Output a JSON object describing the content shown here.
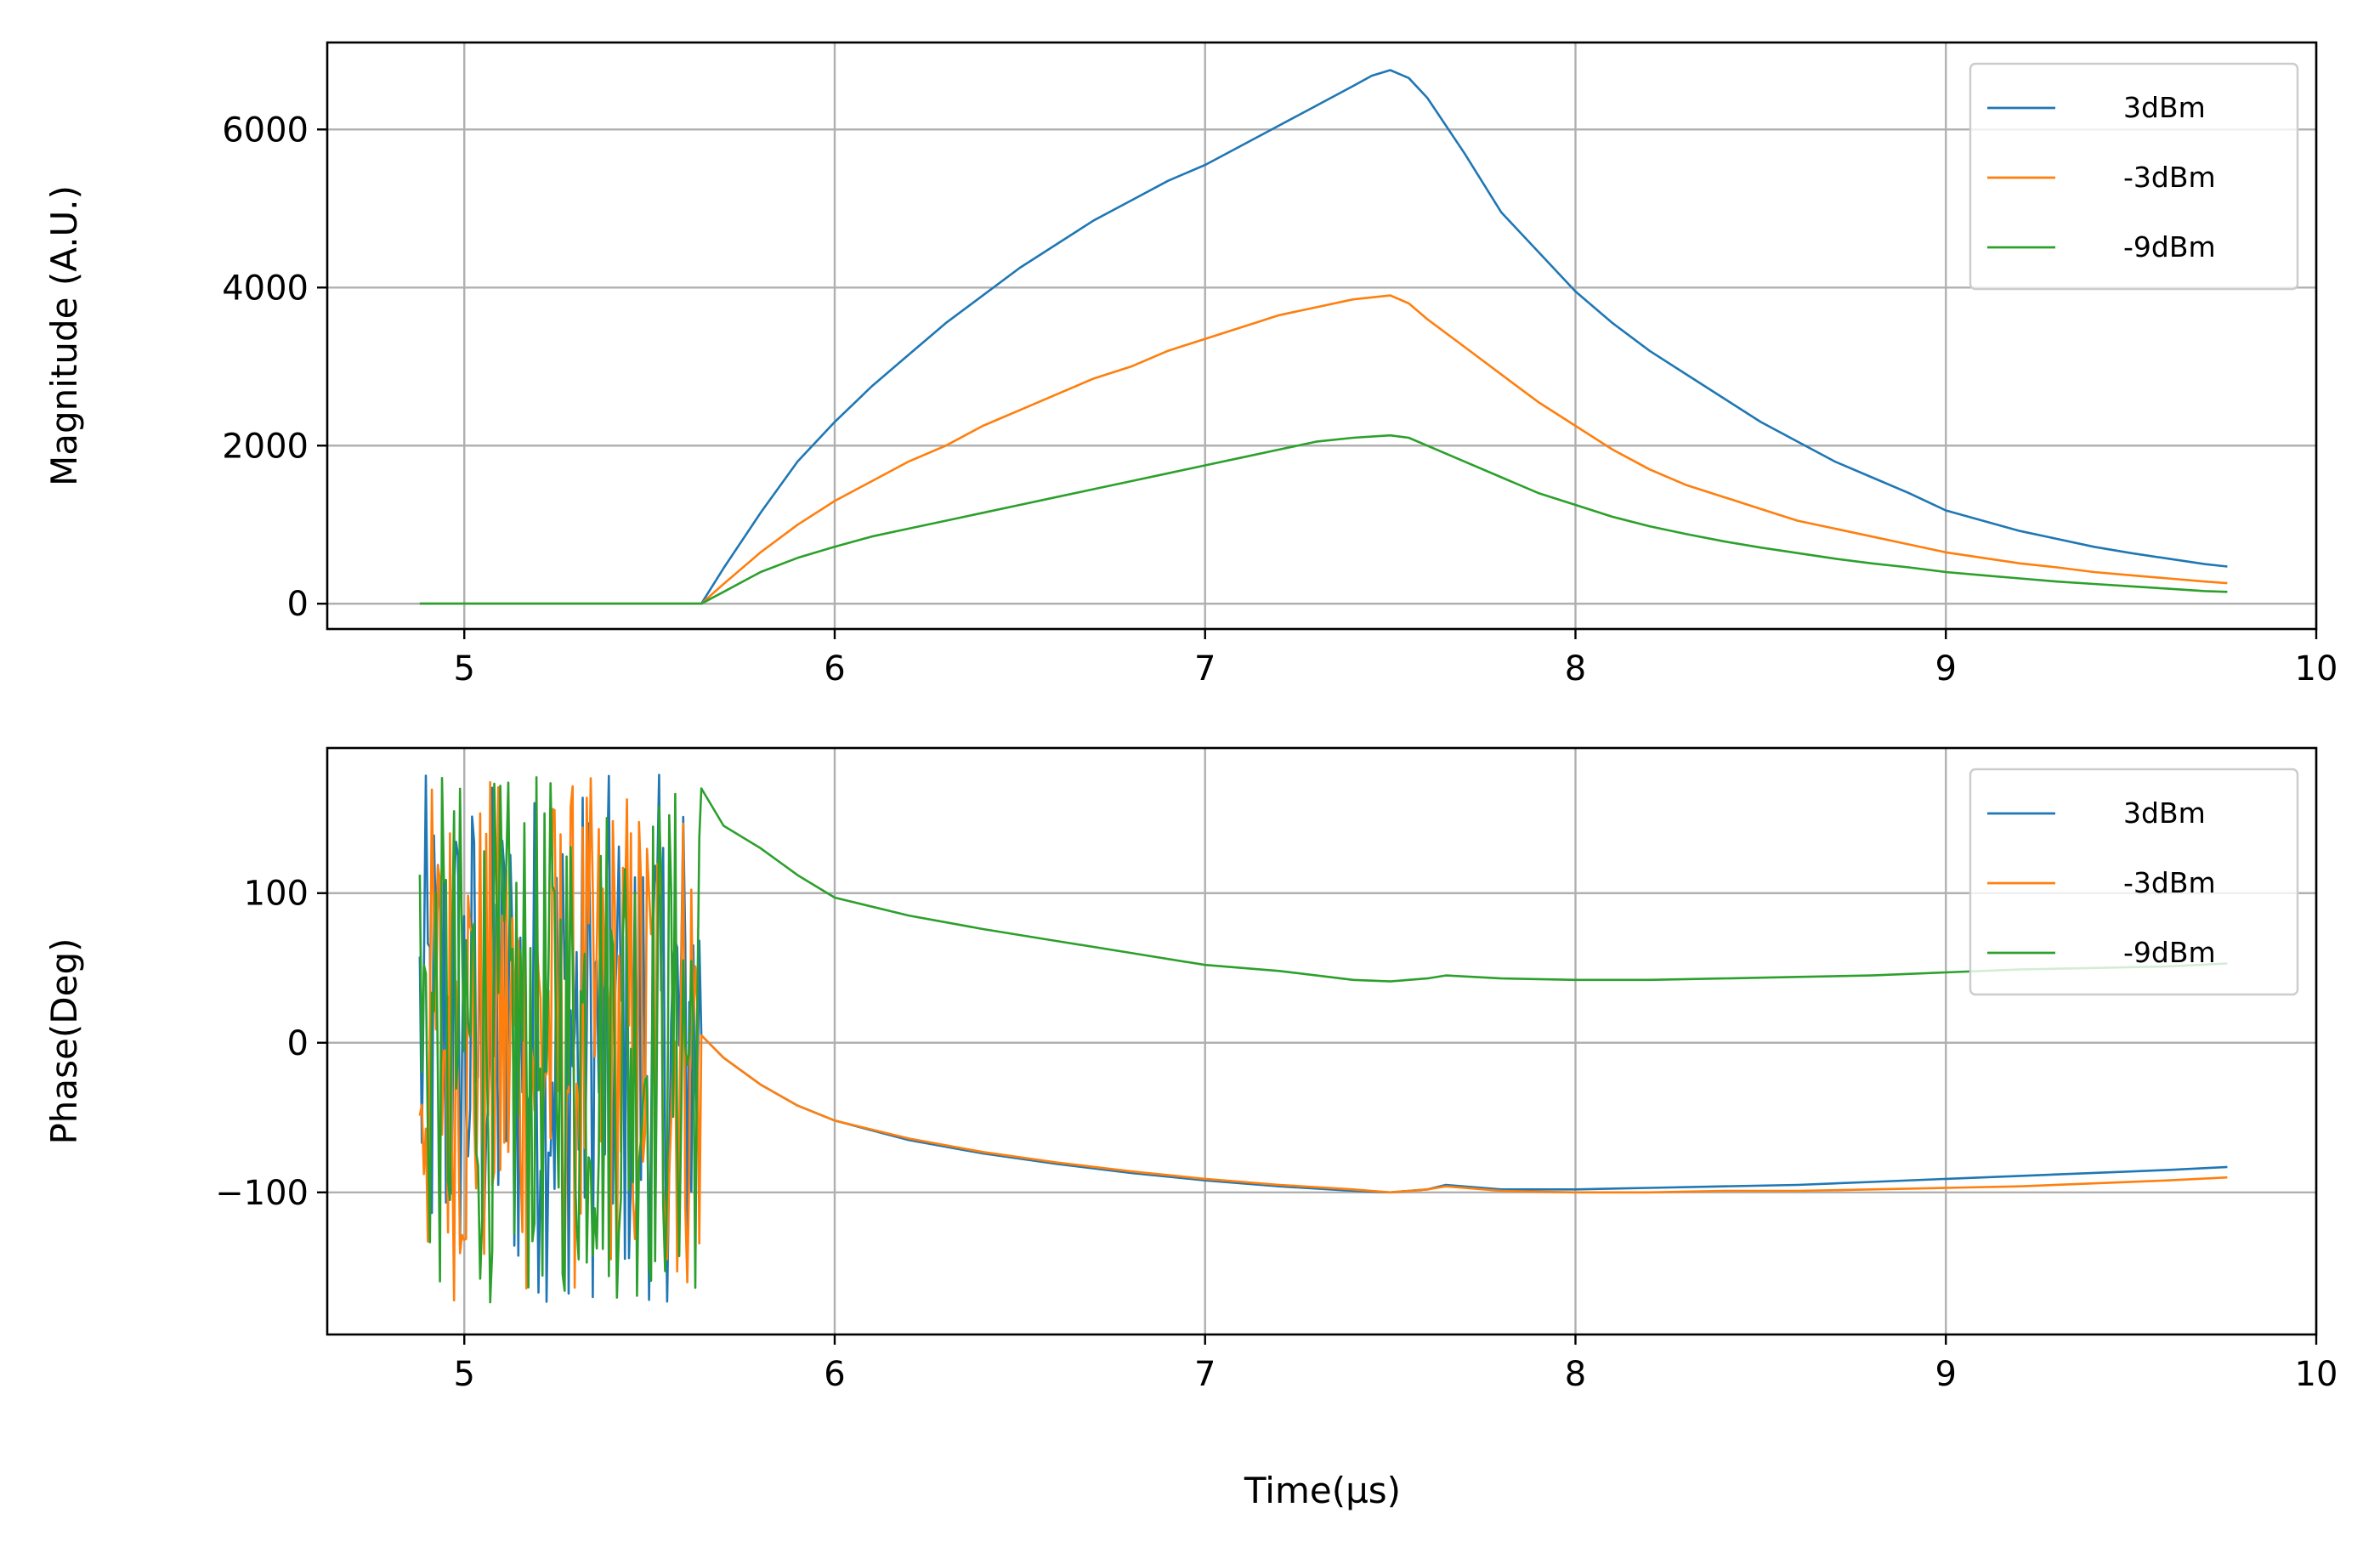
{
  "figure": {
    "x_label": "Time(µs)"
  },
  "chart_data": [
    {
      "type": "line",
      "ylabel": "Magnitude (A.U.)",
      "xlim": [
        4.63,
        10.0
      ],
      "ylim": [
        -320,
        7100
      ],
      "x_ticks": [
        "5",
        "6",
        "7",
        "8",
        "9",
        "10"
      ],
      "y_ticks": [
        "0",
        "2000",
        "4000",
        "6000"
      ],
      "grid": true,
      "legend_position": "top-right",
      "series": [
        {
          "name": "3dBm",
          "color": "#1f77b4",
          "points": [
            [
              4.88,
              0
            ],
            [
              5.3,
              0
            ],
            [
              5.62,
              0
            ],
            [
              5.64,
              0
            ],
            [
              5.7,
              450
            ],
            [
              5.8,
              1150
            ],
            [
              5.9,
              1800
            ],
            [
              6.0,
              2300
            ],
            [
              6.1,
              2750
            ],
            [
              6.2,
              3150
            ],
            [
              6.3,
              3550
            ],
            [
              6.4,
              3900
            ],
            [
              6.5,
              4250
            ],
            [
              6.6,
              4550
            ],
            [
              6.7,
              4850
            ],
            [
              6.8,
              5100
            ],
            [
              6.9,
              5350
            ],
            [
              7.0,
              5550
            ],
            [
              7.1,
              5800
            ],
            [
              7.2,
              6050
            ],
            [
              7.3,
              6300
            ],
            [
              7.4,
              6550
            ],
            [
              7.45,
              6680
            ],
            [
              7.5,
              6750
            ],
            [
              7.55,
              6650
            ],
            [
              7.6,
              6400
            ],
            [
              7.7,
              5700
            ],
            [
              7.8,
              4950
            ],
            [
              7.9,
              4450
            ],
            [
              8.0,
              3950
            ],
            [
              8.1,
              3550
            ],
            [
              8.2,
              3200
            ],
            [
              8.3,
              2900
            ],
            [
              8.4,
              2600
            ],
            [
              8.5,
              2300
            ],
            [
              8.6,
              2050
            ],
            [
              8.7,
              1800
            ],
            [
              8.8,
              1600
            ],
            [
              8.9,
              1400
            ],
            [
              9.0,
              1180
            ],
            [
              9.1,
              1050
            ],
            [
              9.2,
              920
            ],
            [
              9.3,
              820
            ],
            [
              9.4,
              720
            ],
            [
              9.5,
              640
            ],
            [
              9.6,
              570
            ],
            [
              9.7,
              500
            ],
            [
              9.76,
              470
            ]
          ]
        },
        {
          "name": "-3dBm",
          "color": "#ff7f0e",
          "points": [
            [
              4.88,
              0
            ],
            [
              5.3,
              0
            ],
            [
              5.62,
              0
            ],
            [
              5.64,
              0
            ],
            [
              5.7,
              250
            ],
            [
              5.8,
              650
            ],
            [
              5.9,
              1000
            ],
            [
              6.0,
              1300
            ],
            [
              6.1,
              1550
            ],
            [
              6.2,
              1800
            ],
            [
              6.3,
              2000
            ],
            [
              6.4,
              2250
            ],
            [
              6.5,
              2450
            ],
            [
              6.6,
              2650
            ],
            [
              6.7,
              2850
            ],
            [
              6.8,
              3000
            ],
            [
              6.9,
              3200
            ],
            [
              7.0,
              3350
            ],
            [
              7.1,
              3500
            ],
            [
              7.2,
              3650
            ],
            [
              7.3,
              3750
            ],
            [
              7.4,
              3850
            ],
            [
              7.5,
              3900
            ],
            [
              7.55,
              3800
            ],
            [
              7.6,
              3600
            ],
            [
              7.7,
              3250
            ],
            [
              7.8,
              2900
            ],
            [
              7.9,
              2550
            ],
            [
              8.0,
              2250
            ],
            [
              8.1,
              1950
            ],
            [
              8.2,
              1700
            ],
            [
              8.3,
              1500
            ],
            [
              8.4,
              1350
            ],
            [
              8.5,
              1200
            ],
            [
              8.6,
              1050
            ],
            [
              8.7,
              950
            ],
            [
              8.8,
              850
            ],
            [
              8.9,
              750
            ],
            [
              9.0,
              650
            ],
            [
              9.1,
              580
            ],
            [
              9.2,
              510
            ],
            [
              9.3,
              460
            ],
            [
              9.4,
              400
            ],
            [
              9.5,
              360
            ],
            [
              9.6,
              320
            ],
            [
              9.7,
              280
            ],
            [
              9.76,
              260
            ]
          ]
        },
        {
          "name": "-9dBm",
          "color": "#2ca02c",
          "points": [
            [
              4.88,
              0
            ],
            [
              5.3,
              0
            ],
            [
              5.62,
              0
            ],
            [
              5.64,
              0
            ],
            [
              5.7,
              150
            ],
            [
              5.8,
              400
            ],
            [
              5.9,
              580
            ],
            [
              6.0,
              720
            ],
            [
              6.1,
              850
            ],
            [
              6.2,
              950
            ],
            [
              6.3,
              1050
            ],
            [
              6.4,
              1150
            ],
            [
              6.5,
              1250
            ],
            [
              6.6,
              1350
            ],
            [
              6.7,
              1450
            ],
            [
              6.8,
              1550
            ],
            [
              6.9,
              1650
            ],
            [
              7.0,
              1750
            ],
            [
              7.1,
              1850
            ],
            [
              7.2,
              1950
            ],
            [
              7.3,
              2050
            ],
            [
              7.4,
              2100
            ],
            [
              7.5,
              2130
            ],
            [
              7.55,
              2100
            ],
            [
              7.6,
              2000
            ],
            [
              7.7,
              1800
            ],
            [
              7.8,
              1600
            ],
            [
              7.9,
              1400
            ],
            [
              8.0,
              1250
            ],
            [
              8.1,
              1100
            ],
            [
              8.2,
              980
            ],
            [
              8.3,
              880
            ],
            [
              8.4,
              790
            ],
            [
              8.5,
              710
            ],
            [
              8.6,
              640
            ],
            [
              8.7,
              570
            ],
            [
              8.8,
              510
            ],
            [
              8.9,
              460
            ],
            [
              9.0,
              400
            ],
            [
              9.1,
              360
            ],
            [
              9.2,
              320
            ],
            [
              9.3,
              280
            ],
            [
              9.4,
              250
            ],
            [
              9.5,
              220
            ],
            [
              9.6,
              190
            ],
            [
              9.7,
              160
            ],
            [
              9.76,
              150
            ]
          ]
        }
      ]
    },
    {
      "type": "line",
      "ylabel": "Phase(Deg)",
      "xlim": [
        4.63,
        10.0
      ],
      "ylim": [
        -195,
        197
      ],
      "x_ticks": [
        "5",
        "6",
        "7",
        "8",
        "9",
        "10"
      ],
      "y_ticks": [
        "100",
        "0",
        "−100"
      ],
      "grid": true,
      "legend_position": "top-right",
      "noise_region": {
        "x_start": 4.88,
        "x_end": 5.64,
        "y_min": -175,
        "y_max": 180
      },
      "series": [
        {
          "name": "3dBm",
          "color": "#1f77b4",
          "points": [
            [
              5.64,
              5
            ],
            [
              5.7,
              -10
            ],
            [
              5.8,
              -28
            ],
            [
              5.9,
              -42
            ],
            [
              6.0,
              -52
            ],
            [
              6.2,
              -65
            ],
            [
              6.4,
              -74
            ],
            [
              6.6,
              -81
            ],
            [
              6.8,
              -87
            ],
            [
              7.0,
              -92
            ],
            [
              7.2,
              -96
            ],
            [
              7.4,
              -99
            ],
            [
              7.5,
              -100
            ],
            [
              7.6,
              -98
            ],
            [
              7.65,
              -95
            ],
            [
              7.8,
              -98
            ],
            [
              8.0,
              -98
            ],
            [
              8.2,
              -97
            ],
            [
              8.4,
              -96
            ],
            [
              8.6,
              -95
            ],
            [
              8.8,
              -93
            ],
            [
              9.0,
              -91
            ],
            [
              9.2,
              -89
            ],
            [
              9.4,
              -87
            ],
            [
              9.6,
              -85
            ],
            [
              9.76,
              -83
            ]
          ]
        },
        {
          "name": "-3dBm",
          "color": "#ff7f0e",
          "points": [
            [
              5.64,
              5
            ],
            [
              5.7,
              -10
            ],
            [
              5.8,
              -28
            ],
            [
              5.9,
              -42
            ],
            [
              6.0,
              -52
            ],
            [
              6.2,
              -64
            ],
            [
              6.4,
              -73
            ],
            [
              6.6,
              -80
            ],
            [
              6.8,
              -86
            ],
            [
              7.0,
              -91
            ],
            [
              7.2,
              -95
            ],
            [
              7.4,
              -98
            ],
            [
              7.5,
              -100
            ],
            [
              7.6,
              -98
            ],
            [
              7.65,
              -96
            ],
            [
              7.8,
              -99
            ],
            [
              8.0,
              -100
            ],
            [
              8.2,
              -100
            ],
            [
              8.4,
              -99
            ],
            [
              8.6,
              -99
            ],
            [
              8.8,
              -98
            ],
            [
              9.0,
              -97
            ],
            [
              9.2,
              -96
            ],
            [
              9.4,
              -94
            ],
            [
              9.6,
              -92
            ],
            [
              9.76,
              -90
            ]
          ]
        },
        {
          "name": "-9dBm",
          "color": "#2ca02c",
          "points": [
            [
              5.64,
              170
            ],
            [
              5.7,
              145
            ],
            [
              5.8,
              130
            ],
            [
              5.9,
              112
            ],
            [
              6.0,
              97
            ],
            [
              6.2,
              85
            ],
            [
              6.4,
              76
            ],
            [
              6.6,
              68
            ],
            [
              6.8,
              60
            ],
            [
              7.0,
              52
            ],
            [
              7.2,
              48
            ],
            [
              7.4,
              42
            ],
            [
              7.5,
              41
            ],
            [
              7.6,
              43
            ],
            [
              7.65,
              45
            ],
            [
              7.8,
              43
            ],
            [
              8.0,
              42
            ],
            [
              8.2,
              42
            ],
            [
              8.4,
              43
            ],
            [
              8.6,
              44
            ],
            [
              8.8,
              45
            ],
            [
              9.0,
              47
            ],
            [
              9.2,
              49
            ],
            [
              9.4,
              50
            ],
            [
              9.6,
              51
            ],
            [
              9.76,
              53
            ]
          ]
        }
      ]
    }
  ]
}
